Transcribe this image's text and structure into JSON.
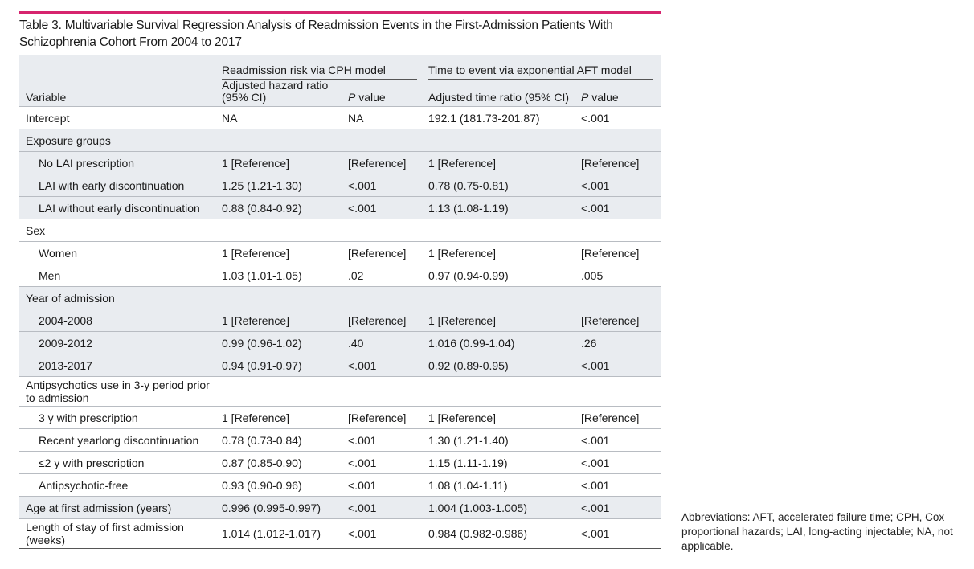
{
  "title": "Table 3. Multivariable Survival Regression Analysis of Readmission Events in the First-Admission Patients With Schizophrenia Cohort From 2004 to 2017",
  "header": {
    "group1": "Readmission risk via CPH model",
    "group2": "Time to event via exponential AFT model",
    "variable": "Variable",
    "hr": "Adjusted hazard ratio (95% CI)",
    "p1_italic": "P",
    "p1_rest": " value",
    "tr": "Adjusted time ratio (95% CI)",
    "p2_italic": "P",
    "p2_rest": " value"
  },
  "rows": [
    {
      "label": "Intercept",
      "hr": "NA",
      "p1": "NA",
      "tr": "192.1 (181.73-201.87)",
      "p2": "<.001"
    },
    {
      "label": "Exposure groups",
      "hr": "",
      "p1": "",
      "tr": "",
      "p2": ""
    },
    {
      "label": "No LAI prescription",
      "hr": "1 [Reference]",
      "p1": "[Reference]",
      "tr": "1 [Reference]",
      "p2": "[Reference]"
    },
    {
      "label": "LAI with early discontinuation",
      "hr": "1.25 (1.21-1.30)",
      "p1": "<.001",
      "tr": "0.78 (0.75-0.81)",
      "p2": "<.001"
    },
    {
      "label": "LAI without early discontinuation",
      "hr": "0.88 (0.84-0.92)",
      "p1": "<.001",
      "tr": "1.13 (1.08-1.19)",
      "p2": "<.001"
    },
    {
      "label": "Sex",
      "hr": "",
      "p1": "",
      "tr": "",
      "p2": ""
    },
    {
      "label": "Women",
      "hr": "1 [Reference]",
      "p1": "[Reference]",
      "tr": "1 [Reference]",
      "p2": "[Reference]"
    },
    {
      "label": "Men",
      "hr": "1.03 (1.01-1.05)",
      "p1": ".02",
      "tr": "0.97 (0.94-0.99)",
      "p2": ".005"
    },
    {
      "label": "Year of admission",
      "hr": "",
      "p1": "",
      "tr": "",
      "p2": ""
    },
    {
      "label": "2004-2008",
      "hr": "1 [Reference]",
      "p1": "[Reference]",
      "tr": "1 [Reference]",
      "p2": "[Reference]"
    },
    {
      "label": "2009-2012",
      "hr": "0.99 (0.96-1.02)",
      "p1": ".40",
      "tr": "1.016 (0.99-1.04)",
      "p2": ".26"
    },
    {
      "label": "2013-2017",
      "hr": "0.94 (0.91-0.97)",
      "p1": "<.001",
      "tr": "0.92 (0.89-0.95)",
      "p2": "<.001"
    },
    {
      "label": "Antipsychotics use in 3-y period prior to admission",
      "hr": "",
      "p1": "",
      "tr": "",
      "p2": ""
    },
    {
      "label": "3 y with prescription",
      "hr": "1 [Reference]",
      "p1": "[Reference]",
      "tr": "1 [Reference]",
      "p2": "[Reference]"
    },
    {
      "label": "Recent yearlong discontinuation",
      "hr": "0.78 (0.73-0.84)",
      "p1": "<.001",
      "tr": "1.30 (1.21-1.40)",
      "p2": "<.001"
    },
    {
      "label": "≤2 y with prescription",
      "hr": "0.87 (0.85-0.90)",
      "p1": "<.001",
      "tr": "1.15 (1.11-1.19)",
      "p2": "<.001"
    },
    {
      "label": "Antipsychotic-free",
      "hr": "0.93 (0.90-0.96)",
      "p1": "<.001",
      "tr": "1.08 (1.04-1.11)",
      "p2": "<.001"
    },
    {
      "label": "Age at first admission (years)",
      "hr": "0.996 (0.995-0.997)",
      "p1": "<.001",
      "tr": "1.004 (1.003-1.005)",
      "p2": "<.001"
    },
    {
      "label": "Length of stay of first admission (weeks)",
      "hr": "1.014 (1.012-1.017)",
      "p1": "<.001",
      "tr": "0.984 (0.982-0.986)",
      "p2": "<.001"
    }
  ],
  "footnote": "Abbreviations: AFT, accelerated failure time; CPH, Cox proportional hazards; LAI, long-acting injectable; NA, not applicable."
}
